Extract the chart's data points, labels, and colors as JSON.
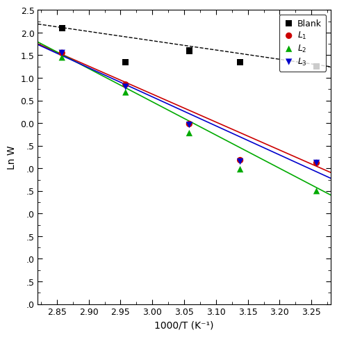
{
  "title": "",
  "xlabel": "1000/T (K⁻¹)",
  "ylabel": "Ln W",
  "xlim": [
    2.82,
    3.28
  ],
  "ylim": [
    -4.0,
    2.5
  ],
  "blank_x": [
    2.858,
    2.958,
    3.058,
    3.138,
    3.258
  ],
  "blank_y": [
    2.1,
    1.35,
    1.6,
    1.35,
    1.25
  ],
  "L1_x": [
    2.858,
    2.958,
    3.058,
    3.138,
    3.258
  ],
  "L1_y": [
    1.55,
    0.85,
    -0.02,
    -0.82,
    -0.88
  ],
  "L2_x": [
    2.858,
    2.958,
    3.058,
    3.138,
    3.258
  ],
  "L2_y": [
    1.45,
    0.68,
    -0.22,
    -1.02,
    -1.5
  ],
  "L3_x": [
    2.858,
    2.958,
    3.058,
    3.138,
    3.258
  ],
  "L3_y": [
    1.55,
    0.8,
    -0.04,
    -0.85,
    -0.88
  ],
  "blank_line_slope": -2.05,
  "blank_line_intercept": 7.97,
  "L1_line_slope": -6.18,
  "L1_line_intercept": 19.18,
  "L2_line_slope": -7.35,
  "L2_line_intercept": 22.52,
  "L3_line_slope": -6.42,
  "L3_line_intercept": 19.84,
  "colors": {
    "blank": "#000000",
    "L1": "#cc0000",
    "L2": "#00aa00",
    "L3": "#0000cc"
  },
  "xticks": [
    2.85,
    2.9,
    2.95,
    3.0,
    3.05,
    3.1,
    3.15,
    3.2,
    3.25
  ],
  "yticks": [
    -4.0,
    -3.5,
    -3.0,
    -2.5,
    -2.0,
    -1.5,
    -1.0,
    -0.5,
    0.0,
    0.5,
    1.0,
    1.5,
    2.0,
    2.5
  ],
  "yticklabels": [
    ".0",
    ".5",
    ".0",
    ".5",
    ".0",
    ".5",
    ".0",
    ".5",
    ".0",
    ".5",
    ".0",
    ".5",
    ".0",
    ".5"
  ],
  "figsize": [
    4.74,
    4.74
  ],
  "dpi": 100
}
